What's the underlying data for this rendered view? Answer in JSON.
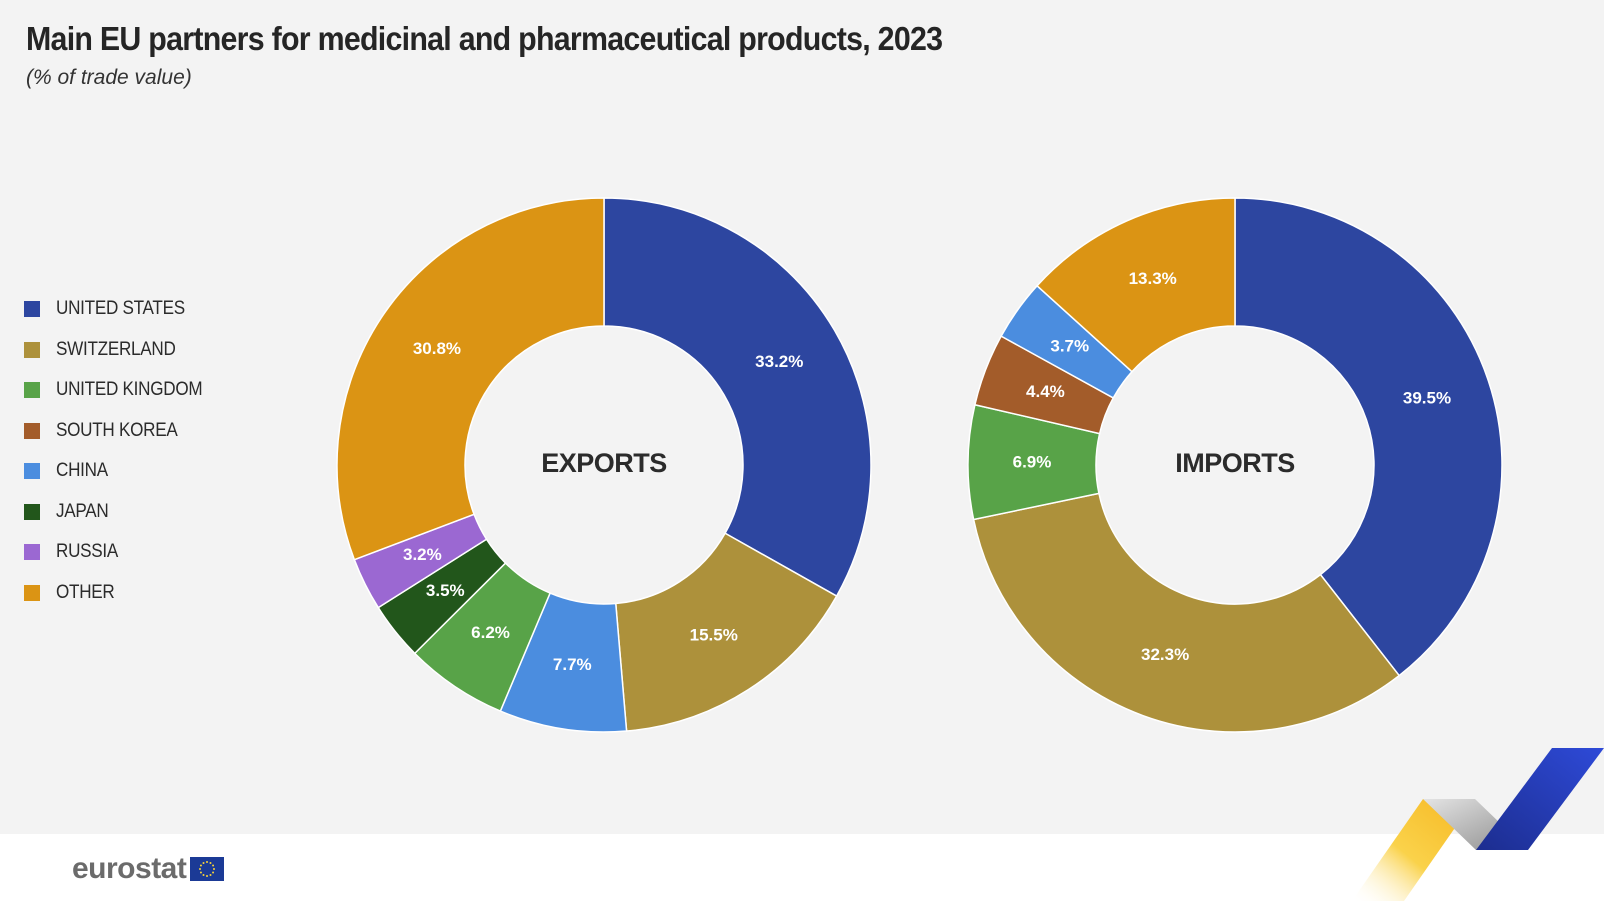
{
  "header": {
    "title": "Main EU partners for medicinal and pharmaceutical products, 2023",
    "subtitle": "(% of trade value)"
  },
  "legend": [
    {
      "label": "UNITED STATES",
      "color": "#2d46a0"
    },
    {
      "label": "SWITZERLAND",
      "color": "#ad913b"
    },
    {
      "label": "UNITED KINGDOM",
      "color": "#58a348"
    },
    {
      "label": "SOUTH KOREA",
      "color": "#a35c2a"
    },
    {
      "label": "CHINA",
      "color": "#4b8ddf"
    },
    {
      "label": "JAPAN",
      "color": "#22561b"
    },
    {
      "label": "RUSSIA",
      "color": "#9b68d2"
    },
    {
      "label": "OTHER",
      "color": "#db9414"
    }
  ],
  "chart_data": [
    {
      "type": "pie",
      "variant": "donut",
      "center_label": "EXPORTS",
      "unit": "%",
      "categories": [
        "UNITED STATES",
        "SWITZERLAND",
        "CHINA",
        "UNITED KINGDOM",
        "JAPAN",
        "RUSSIA",
        "OTHER"
      ],
      "values": [
        33.2,
        15.5,
        7.7,
        6.2,
        3.5,
        3.2,
        30.8
      ],
      "data_labels": [
        "33.2%",
        "15.5%",
        "7.7%",
        "6.2%",
        "3.5%",
        "3.2%",
        "30.8%"
      ],
      "colors": [
        "#2d46a0",
        "#ad913b",
        "#4b8ddf",
        "#58a348",
        "#22561b",
        "#9b68d2",
        "#db9414"
      ],
      "start": "12 o'clock, clockwise"
    },
    {
      "type": "pie",
      "variant": "donut",
      "center_label": "IMPORTS",
      "unit": "%",
      "categories": [
        "UNITED STATES",
        "SWITZERLAND",
        "UNITED KINGDOM",
        "SOUTH KOREA",
        "CHINA",
        "OTHER"
      ],
      "values": [
        39.5,
        32.3,
        6.9,
        4.4,
        3.7,
        13.3
      ],
      "data_labels": [
        "39.5%",
        "32.3%",
        "6.9%",
        "4.4%",
        "3.7%",
        "13.3%"
      ],
      "colors": [
        "#2d46a0",
        "#ad913b",
        "#58a348",
        "#a35c2a",
        "#4b8ddf",
        "#db9414"
      ],
      "start": "12 o'clock, clockwise"
    }
  ],
  "footer": {
    "logo_text": "eurostat",
    "flag_color": "#1b3a96",
    "star_color": "#f7d33a"
  }
}
